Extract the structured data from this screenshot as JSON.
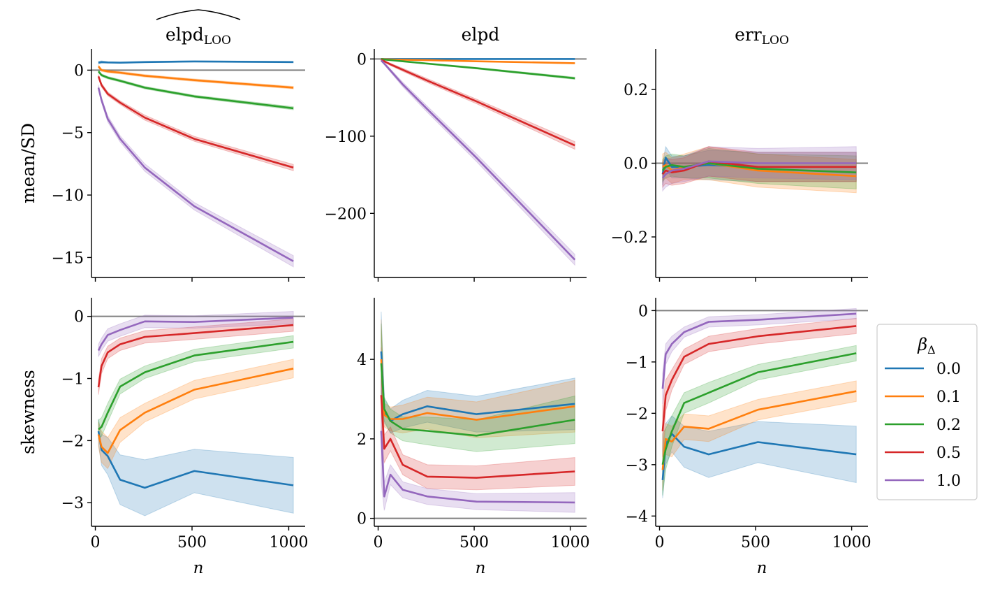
{
  "chart_data": {
    "type": "line",
    "x": [
      16,
      32,
      64,
      128,
      256,
      512,
      1024
    ],
    "column_titles": [
      {
        "main": "elpd",
        "sub": "LOO",
        "hat": true
      },
      {
        "main": "elpd",
        "sub": "",
        "hat": false
      },
      {
        "main": "err",
        "sub": "LOO",
        "hat": false
      }
    ],
    "row_labels": [
      "mean/SD",
      "skewness"
    ],
    "xlabel": "n",
    "xticks": [
      0,
      500,
      1000
    ],
    "xticklabels": [
      "0",
      "500",
      "1000"
    ],
    "xlim": [
      -20,
      1085
    ],
    "series_colors": [
      "#1f77b4",
      "#ff7f0e",
      "#2ca02c",
      "#d62728",
      "#9467bd"
    ],
    "legend": {
      "title_main": "β",
      "title_sub": "Δ",
      "placement": "right",
      "entries": [
        "0.0",
        "0.1",
        "0.2",
        "0.5",
        "1.0"
      ]
    },
    "panels": [
      {
        "id": "elpd-loo-mean-sd",
        "ylim": [
          -16.6,
          1.7
        ],
        "yticks": [
          0,
          -5,
          -10,
          -15
        ],
        "yticklabels": [
          "0",
          "−5",
          "−10",
          "−15"
        ],
        "refline": 0,
        "series": [
          {
            "name": "0.0",
            "values": [
              0.6,
              0.65,
              0.62,
              0.6,
              0.65,
              0.7,
              0.65
            ],
            "band": [
              0.1,
              0.1,
              0.05,
              0.05,
              0.05,
              0.05,
              0.05
            ]
          },
          {
            "name": "0.1",
            "values": [
              0.3,
              0.0,
              -0.1,
              -0.2,
              -0.45,
              -0.8,
              -1.4
            ],
            "band": [
              0.1,
              0.1,
              0.1,
              0.1,
              0.1,
              0.1,
              0.1
            ]
          },
          {
            "name": "0.2",
            "values": [
              -0.1,
              -0.4,
              -0.6,
              -0.85,
              -1.4,
              -2.1,
              -3.05
            ],
            "band": [
              0.1,
              0.1,
              0.1,
              0.1,
              0.1,
              0.1,
              0.12
            ]
          },
          {
            "name": "0.5",
            "values": [
              -0.5,
              -1.2,
              -1.9,
              -2.6,
              -3.8,
              -5.5,
              -7.8
            ],
            "band": [
              0.15,
              0.15,
              0.15,
              0.15,
              0.2,
              0.2,
              0.25
            ]
          },
          {
            "name": "1.0",
            "values": [
              -1.4,
              -2.4,
              -3.9,
              -5.5,
              -7.8,
              -10.9,
              -15.3
            ],
            "band": [
              0.2,
              0.2,
              0.25,
              0.25,
              0.3,
              0.3,
              0.45
            ]
          }
        ]
      },
      {
        "id": "elpd-mean-sd",
        "ylim": [
          -283,
          13
        ],
        "yticks": [
          0,
          -100,
          -200
        ],
        "yticklabels": [
          "0",
          "−100",
          "−200"
        ],
        "refline": 0,
        "series": [
          {
            "name": "0.0",
            "values": [
              0,
              0,
              0,
              0,
              0,
              0,
              0
            ],
            "band": [
              0.4,
              0.4,
              0.4,
              0.4,
              0.4,
              0.4,
              0.5
            ]
          },
          {
            "name": "0.1",
            "values": [
              0,
              -0.3,
              -0.6,
              -1,
              -1.6,
              -3.0,
              -5.5
            ],
            "band": [
              0.5,
              0.5,
              0.5,
              0.5,
              0.5,
              0.6,
              0.8
            ]
          },
          {
            "name": "0.2",
            "values": [
              0,
              -0.8,
              -1.5,
              -3,
              -6,
              -12,
              -25
            ],
            "band": [
              0.5,
              0.5,
              0.5,
              0.6,
              0.8,
              1.0,
              1.5
            ]
          },
          {
            "name": "0.5",
            "values": [
              -1,
              -3,
              -7,
              -14,
              -28,
              -55,
              -112
            ],
            "band": [
              1,
              1,
              1.5,
              2,
              2.5,
              3,
              5
            ]
          },
          {
            "name": "1.0",
            "values": [
              -2,
              -6,
              -15,
              -33,
              -65,
              -128,
              -260
            ],
            "band": [
              1,
              1.5,
              2,
              3,
              4,
              5,
              7
            ]
          }
        ]
      },
      {
        "id": "err-loo-mean-sd",
        "ylim": [
          -0.31,
          0.31
        ],
        "yticks": [
          0.2,
          0,
          -0.2
        ],
        "yticklabels": [
          "0.2",
          "0.0",
          "−0.2"
        ],
        "refline": 0,
        "series": [
          {
            "name": "0.0",
            "values": [
              -0.03,
              0.015,
              -0.01,
              -0.01,
              -0.005,
              -0.01,
              -0.01
            ],
            "band": [
              0.03,
              0.03,
              0.03,
              0.03,
              0.04,
              0.04,
              0.04
            ]
          },
          {
            "name": "0.1",
            "values": [
              -0.01,
              -0.005,
              -0.02,
              -0.01,
              0.0,
              -0.02,
              -0.035
            ],
            "band": [
              0.035,
              0.035,
              0.035,
              0.035,
              0.045,
              0.045,
              0.045
            ]
          },
          {
            "name": "0.2",
            "values": [
              -0.02,
              -0.01,
              -0.005,
              -0.01,
              0.0,
              -0.015,
              -0.025
            ],
            "band": [
              0.03,
              0.03,
              0.03,
              0.03,
              0.04,
              0.04,
              0.045
            ]
          },
          {
            "name": "0.5",
            "values": [
              -0.03,
              -0.02,
              -0.025,
              -0.02,
              0.005,
              -0.01,
              -0.01
            ],
            "band": [
              0.035,
              0.035,
              0.035,
              0.035,
              0.04,
              0.04,
              0.04
            ]
          },
          {
            "name": "1.0",
            "values": [
              -0.04,
              -0.03,
              -0.02,
              -0.015,
              0.005,
              0.0,
              0.0
            ],
            "band": [
              0.035,
              0.035,
              0.035,
              0.035,
              0.04,
              0.04,
              0.045
            ]
          }
        ]
      },
      {
        "id": "elpd-loo-skewness",
        "ylim": [
          -3.38,
          0.3
        ],
        "yticks": [
          0,
          -1,
          -2,
          -3
        ],
        "yticklabels": [
          "0",
          "−1",
          "−2",
          "−3"
        ],
        "refline": 0,
        "series": [
          {
            "name": "0.0",
            "values": [
              -1.85,
              -2.15,
              -2.25,
              -2.63,
              -2.76,
              -2.49,
              -2.72
            ],
            "band": [
              0.2,
              0.25,
              0.3,
              0.4,
              0.45,
              0.35,
              0.45
            ]
          },
          {
            "name": "0.1",
            "values": [
              -1.9,
              -2.1,
              -2.2,
              -1.83,
              -1.55,
              -1.18,
              -0.84
            ],
            "band": [
              0.2,
              0.25,
              0.25,
              0.2,
              0.15,
              0.15,
              0.15
            ]
          },
          {
            "name": "0.2",
            "values": [
              -1.82,
              -1.78,
              -1.55,
              -1.13,
              -0.9,
              -0.63,
              -0.41
            ],
            "band": [
              0.15,
              0.15,
              0.15,
              0.12,
              0.1,
              0.1,
              0.1
            ]
          },
          {
            "name": "0.5",
            "values": [
              -1.14,
              -0.8,
              -0.58,
              -0.45,
              -0.33,
              -0.27,
              -0.14
            ],
            "band": [
              0.12,
              0.12,
              0.1,
              0.1,
              0.1,
              0.1,
              0.1
            ]
          },
          {
            "name": "1.0",
            "values": [
              -0.55,
              -0.45,
              -0.3,
              -0.22,
              -0.08,
              -0.09,
              -0.02
            ],
            "band": [
              0.1,
              0.1,
              0.1,
              0.1,
              0.1,
              0.1,
              0.1
            ]
          }
        ]
      },
      {
        "id": "elpd-skewness",
        "ylim": [
          -0.2,
          5.55
        ],
        "yticks": [
          0,
          2,
          4
        ],
        "yticklabels": [
          "0",
          "2",
          "4"
        ],
        "refline": 0,
        "series": [
          {
            "name": "0.0",
            "values": [
              4.2,
              2.7,
              2.45,
              2.62,
              2.82,
              2.62,
              2.88
            ],
            "band": [
              1.0,
              0.3,
              0.3,
              0.35,
              0.4,
              0.45,
              0.65
            ]
          },
          {
            "name": "0.1",
            "values": [
              4.0,
              2.6,
              2.5,
              2.5,
              2.65,
              2.48,
              2.82
            ],
            "band": [
              1.0,
              0.3,
              0.3,
              0.35,
              0.4,
              0.45,
              0.65
            ]
          },
          {
            "name": "0.2",
            "values": [
              3.9,
              2.75,
              2.45,
              2.25,
              2.2,
              2.08,
              2.48
            ],
            "band": [
              1.0,
              0.3,
              0.3,
              0.3,
              0.35,
              0.4,
              0.6
            ]
          },
          {
            "name": "0.5",
            "values": [
              3.1,
              1.75,
              2.0,
              1.35,
              1.05,
              1.02,
              1.18
            ],
            "band": [
              1.2,
              0.35,
              0.3,
              0.25,
              0.3,
              0.3,
              0.35
            ]
          },
          {
            "name": "1.0",
            "values": [
              2.2,
              0.55,
              1.1,
              0.72,
              0.55,
              0.42,
              0.4
            ],
            "band": [
              1.3,
              0.35,
              0.25,
              0.2,
              0.2,
              0.2,
              0.25
            ]
          }
        ]
      },
      {
        "id": "err-loo-skewness",
        "ylim": [
          -4.2,
          0.25
        ],
        "yticks": [
          0,
          -1,
          -2,
          -3,
          -4
        ],
        "yticklabels": [
          "0",
          "−1",
          "−2",
          "−3",
          "−4"
        ],
        "refline": 0,
        "series": [
          {
            "name": "0.0",
            "values": [
              -3.3,
              -2.6,
              -2.4,
              -2.65,
              -2.8,
              -2.56,
              -2.8
            ],
            "band": [
              0.35,
              0.4,
              0.35,
              0.4,
              0.45,
              0.4,
              0.55
            ]
          },
          {
            "name": "0.1",
            "values": [
              -3.1,
              -2.5,
              -2.55,
              -2.26,
              -2.3,
              -1.93,
              -1.57
            ],
            "band": [
              0.4,
              0.3,
              0.3,
              0.25,
              0.25,
              0.2,
              0.2
            ]
          },
          {
            "name": "0.2",
            "values": [
              -3.0,
              -2.7,
              -2.35,
              -1.8,
              -1.6,
              -1.2,
              -0.83
            ],
            "band": [
              0.6,
              0.4,
              0.3,
              0.2,
              0.2,
              0.15,
              0.15
            ]
          },
          {
            "name": "0.5",
            "values": [
              -2.35,
              -1.65,
              -1.35,
              -0.9,
              -0.65,
              -0.5,
              -0.3
            ],
            "band": [
              0.5,
              0.3,
              0.2,
              0.15,
              0.15,
              0.15,
              0.15
            ]
          },
          {
            "name": "1.0",
            "values": [
              -1.52,
              -0.85,
              -0.65,
              -0.42,
              -0.22,
              -0.18,
              -0.06
            ],
            "band": [
              0.3,
              0.2,
              0.15,
              0.1,
              0.1,
              0.1,
              0.1
            ]
          }
        ]
      }
    ]
  }
}
